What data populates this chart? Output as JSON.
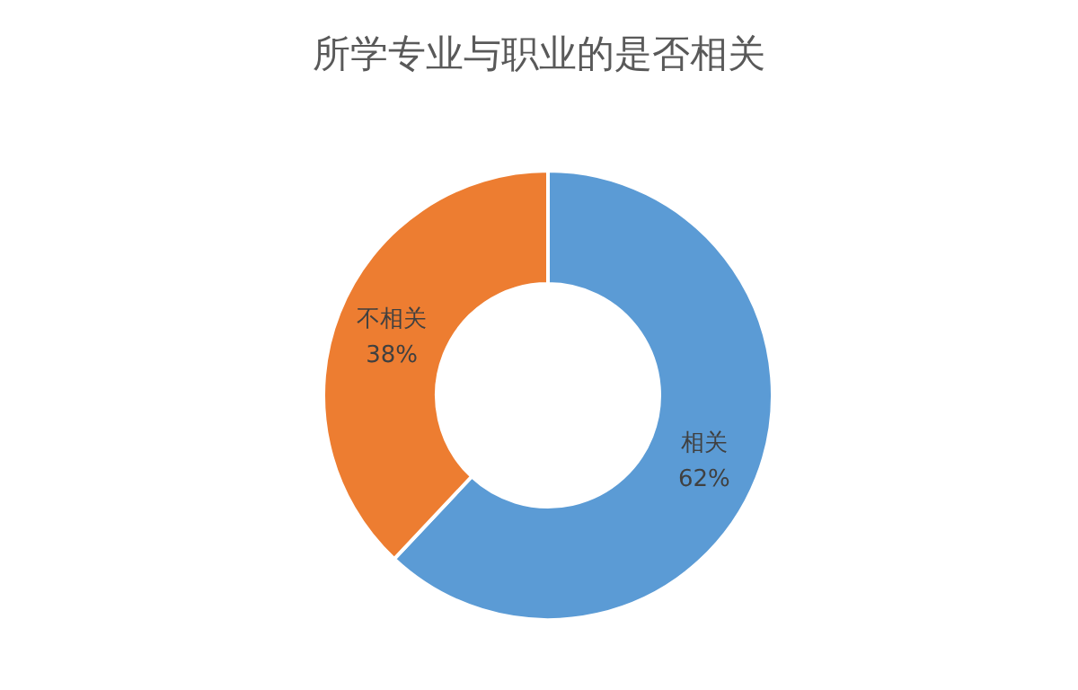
{
  "chart_data": {
    "type": "donut",
    "title": "所学专业与职业的是否相关",
    "categories": [
      "相关",
      "不相关"
    ],
    "values": [
      62,
      38
    ],
    "colors": [
      "#5b9bd5",
      "#ed7d31"
    ],
    "value_labels": [
      "62%",
      "38%"
    ],
    "legend": false
  }
}
